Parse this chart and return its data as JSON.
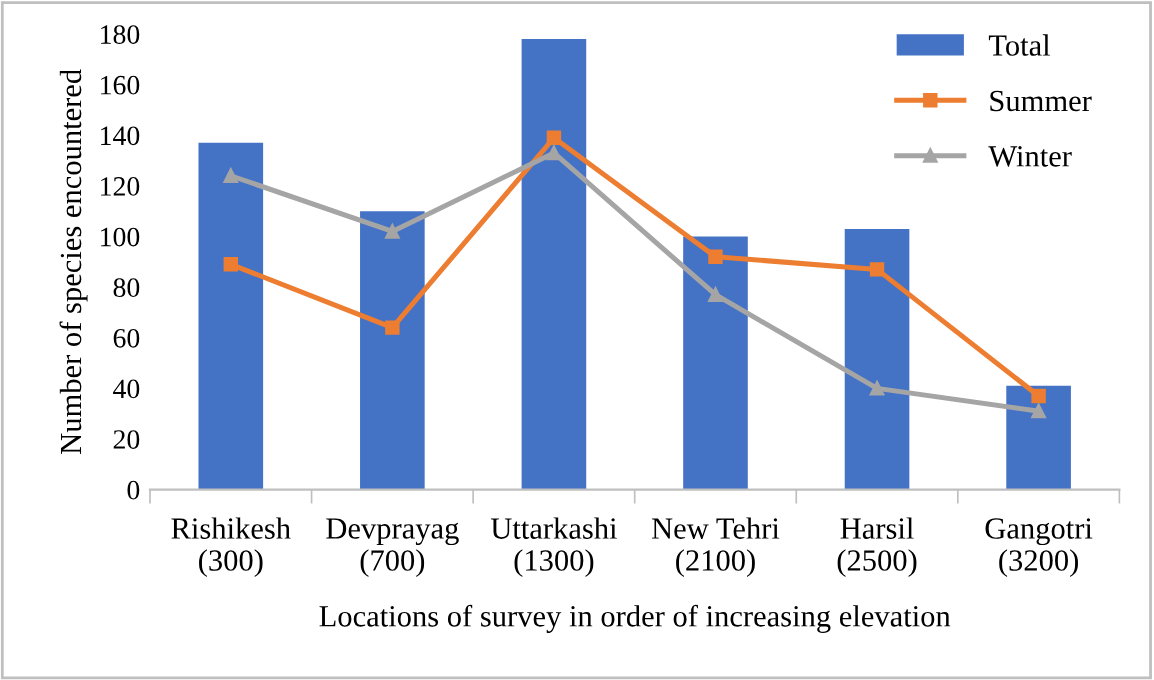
{
  "chart_data": {
    "type": "bar",
    "xlabel": "Locations of survey in order of increasing elevation",
    "ylabel": "Number of species encountered",
    "categories": [
      "Rishikesh\n(300)",
      "Devprayag\n(700)",
      "Uttarkashi\n(1300)",
      "New Tehri\n(2100)",
      "Harsil\n(2500)",
      "Gangotri\n(3200)"
    ],
    "series": [
      {
        "name": "Total",
        "color": "#4472c4",
        "values": [
          137,
          110,
          178,
          100,
          103,
          41
        ]
      },
      {
        "name": "Summer",
        "type": "line",
        "color": "#ed7d31",
        "marker": "square",
        "values": [
          89,
          64,
          139,
          92,
          87,
          37
        ]
      },
      {
        "name": "Winter",
        "type": "line",
        "color": "#a5a5a5",
        "marker": "triangle",
        "values": [
          124,
          102,
          133,
          77,
          40,
          31
        ]
      }
    ],
    "ylim": [
      0,
      180
    ],
    "yticks": [
      0,
      20,
      40,
      60,
      80,
      100,
      120,
      140,
      160,
      180
    ],
    "grid": false,
    "legend": "top right"
  }
}
